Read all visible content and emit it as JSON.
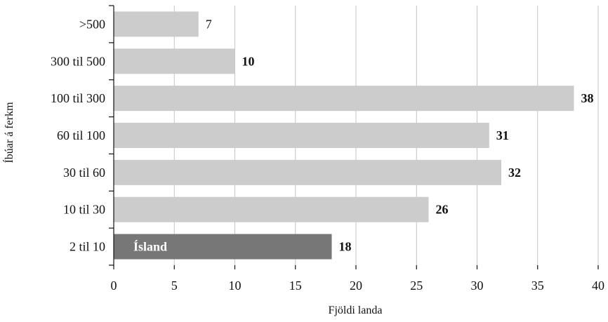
{
  "chart_data": {
    "type": "bar",
    "orientation": "horizontal",
    "categories": [
      ">500",
      "300 til 500",
      "100 til 300",
      "60 til 100",
      "30 til 60",
      "10 til 30",
      "2 til 10"
    ],
    "values": [
      7,
      10,
      38,
      31,
      32,
      26,
      18
    ],
    "bold_value_labels": [
      false,
      true,
      true,
      true,
      true,
      true,
      true
    ],
    "highlight": {
      "category": "2 til 10",
      "label": "Ísland",
      "color": "#777777"
    },
    "bar_color": "#cccccc",
    "xlabel": "Fjöldi landa",
    "ylabel": "Íbúar á ferkm",
    "xlim": [
      0,
      40
    ],
    "xticks": [
      0,
      5,
      10,
      15,
      20,
      25,
      30,
      35,
      40
    ],
    "grid": "vertical"
  }
}
